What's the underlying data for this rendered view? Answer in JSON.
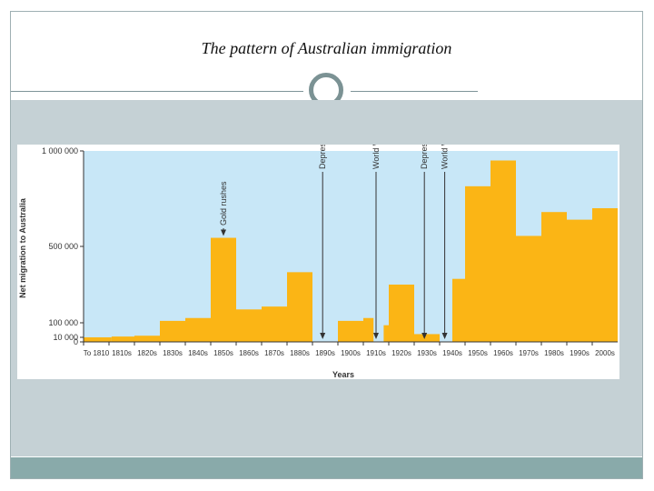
{
  "slide": {
    "title": "The pattern of Australian immigration"
  },
  "chart_data": {
    "type": "bar",
    "title": "",
    "xlabel": "Years",
    "ylabel": "Net migration to Australia",
    "ylim": [
      0,
      1000000
    ],
    "y_ticks": [
      {
        "value": 1000000,
        "label": "1 000 000"
      },
      {
        "value": 500000,
        "label": "500 000"
      },
      {
        "value": 100000,
        "label": "100 000"
      },
      {
        "value": 10000,
        "label": "10 000"
      },
      {
        "value": 0,
        "label": "0"
      }
    ],
    "categories": [
      "To 1810",
      "1810s",
      "1820s",
      "1830s",
      "1840s",
      "1850s",
      "1860s",
      "1870s",
      "1880s",
      "1890s",
      "1900s",
      "1910s",
      "1920s",
      "1930s",
      "1940s",
      "1950s",
      "1960s",
      "1970s",
      "1980s",
      "1990s",
      "2000s"
    ],
    "values": [
      10000,
      15000,
      20000,
      110000,
      125000,
      545000,
      170000,
      185000,
      365000,
      0,
      110000,
      110000,
      300000,
      30000,
      330000,
      815000,
      950000,
      555000,
      680000,
      640000,
      700000
    ],
    "bars": [
      {
        "x_start": 1800,
        "x_end": 1811,
        "value": 10000
      },
      {
        "x_start": 1811,
        "x_end": 1820,
        "value": 15000
      },
      {
        "x_start": 1820,
        "x_end": 1830,
        "value": 20000
      },
      {
        "x_start": 1830,
        "x_end": 1840,
        "value": 110000
      },
      {
        "x_start": 1840,
        "x_end": 1850,
        "value": 125000
      },
      {
        "x_start": 1850,
        "x_end": 1860,
        "value": 545000
      },
      {
        "x_start": 1860,
        "x_end": 1870,
        "value": 170000
      },
      {
        "x_start": 1870,
        "x_end": 1880,
        "value": 185000
      },
      {
        "x_start": 1880,
        "x_end": 1890,
        "value": 365000
      },
      {
        "x_start": 1900,
        "x_end": 1910,
        "value": 110000
      },
      {
        "x_start": 1910,
        "x_end": 1914,
        "value": 125000
      },
      {
        "x_start": 1918,
        "x_end": 1920,
        "value": 85000
      },
      {
        "x_start": 1920,
        "x_end": 1930,
        "value": 300000
      },
      {
        "x_start": 1930,
        "x_end": 1940,
        "value": 30000
      },
      {
        "x_start": 1945,
        "x_end": 1950,
        "value": 330000
      },
      {
        "x_start": 1950,
        "x_end": 1960,
        "value": 815000
      },
      {
        "x_start": 1960,
        "x_end": 1970,
        "value": 950000
      },
      {
        "x_start": 1970,
        "x_end": 1980,
        "value": 555000
      },
      {
        "x_start": 1980,
        "x_end": 1990,
        "value": 680000
      },
      {
        "x_start": 1990,
        "x_end": 2000,
        "value": 640000
      },
      {
        "x_start": 2000,
        "x_end": 2010,
        "value": 700000
      }
    ],
    "annotations": [
      {
        "label": "Gold rushes",
        "year": 1855
      },
      {
        "label": "Depression",
        "year": 1894
      },
      {
        "label": "World War I",
        "year": 1915
      },
      {
        "label": "Depression",
        "year": 1934
      },
      {
        "label": "World War II",
        "year": 1942
      }
    ],
    "grid": false,
    "colors": {
      "bar": "#fbb515",
      "plot_background": "#c8e7f7",
      "arrow": "#333333"
    }
  }
}
